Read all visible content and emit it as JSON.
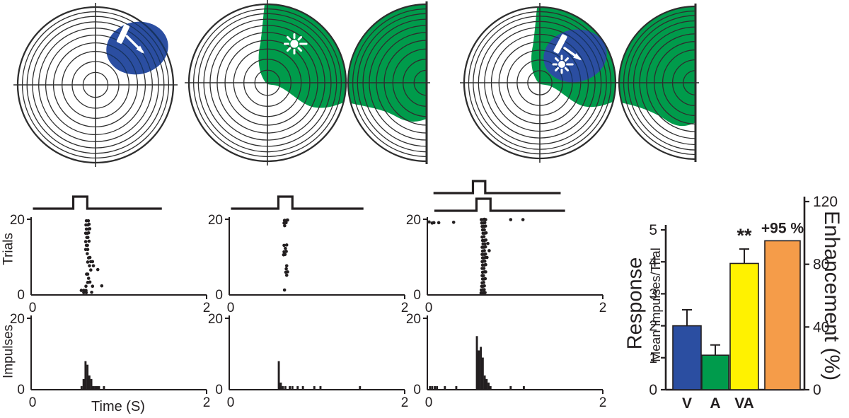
{
  "colors": {
    "rf_blue": "#2B4EA1",
    "rf_green": "#009B4B",
    "bar_v": "#2B4EA1",
    "bar_a": "#009B4C",
    "bar_va": "#FFF200",
    "bar_enhancement": "#F59C49",
    "line": "#231F20",
    "grid": "#2E2E2E",
    "grid_over_blue": "#17335F",
    "icon_white": "#FFFFFF"
  },
  "receptive_fields": {
    "panels": [
      {
        "name": "visual",
        "overlays": [
          "visual-rf-ellipse",
          "moving-bar-icon"
        ],
        "caudal_hemifield": false
      },
      {
        "name": "auditory",
        "overlays": [
          "auditory-rf-region",
          "sun-burst-icon"
        ],
        "caudal_hemifield": true
      },
      {
        "name": "visual-auditory",
        "overlays": [
          "auditory-rf-region",
          "visual-rf-ellipse",
          "moving-bar-icon",
          "sun-burst-icon"
        ],
        "caudal_hemifield": true
      }
    ]
  },
  "chart_data": [
    {
      "id": "raster-visual",
      "type": "scatter",
      "ylabel": "Trials",
      "x_range": [
        0,
        2
      ],
      "y_range": [
        0,
        20
      ],
      "x_ticks": [
        0,
        2
      ],
      "y_ticks": [
        0,
        20
      ],
      "stim_traces": [
        {
          "name": "stimulus-pulse",
          "span": [
            0.02,
            1.49
          ],
          "pulse": [
            0.48,
            0.64
          ]
        }
      ],
      "points": [
        [
          0.63,
          19.6
        ],
        [
          0.652,
          19.6
        ],
        [
          0.625,
          18.5
        ],
        [
          0.648,
          18.5
        ],
        [
          0.66,
          18.7
        ],
        [
          0.63,
          17.4
        ],
        [
          0.653,
          17.4
        ],
        [
          0.668,
          17.5
        ],
        [
          0.622,
          16.3
        ],
        [
          0.64,
          16.3
        ],
        [
          0.655,
          16.4
        ],
        [
          0.635,
          15.2
        ],
        [
          0.647,
          15.2
        ],
        [
          0.622,
          14.1
        ],
        [
          0.66,
          14.2
        ],
        [
          0.63,
          13.1
        ],
        [
          0.642,
          13.1
        ],
        [
          0.622,
          12.0
        ],
        [
          0.645,
          12.0
        ],
        [
          0.64,
          10.9
        ],
        [
          0.655,
          9.8
        ],
        [
          0.67,
          9.9
        ],
        [
          0.645,
          8.7
        ],
        [
          0.68,
          8.8
        ],
        [
          0.7,
          8.8
        ],
        [
          0.665,
          7.7
        ],
        [
          0.71,
          7.7
        ],
        [
          0.68,
          6.6
        ],
        [
          0.76,
          6.7
        ],
        [
          0.632,
          5.5
        ],
        [
          0.645,
          5.5
        ],
        [
          0.655,
          4.4
        ],
        [
          0.645,
          3.3
        ],
        [
          0.67,
          3.4
        ],
        [
          0.625,
          2.3
        ],
        [
          0.7,
          2.3
        ],
        [
          0.805,
          2.4
        ],
        [
          0.572,
          1.2
        ],
        [
          0.6,
          1.2
        ],
        [
          0.625,
          1.2
        ],
        [
          0.6,
          0.6
        ],
        [
          0.628,
          0.6
        ],
        [
          0.69,
          0.7
        ]
      ]
    },
    {
      "id": "raster-auditory",
      "type": "scatter",
      "ylabel": "Trials",
      "x_range": [
        0,
        2
      ],
      "y_range": [
        0,
        20
      ],
      "x_ticks": [
        0,
        2
      ],
      "y_ticks": [
        0,
        20
      ],
      "stim_traces": [
        {
          "name": "stimulus-pulse",
          "span": [
            0.02,
            1.53
          ],
          "pulse": [
            0.56,
            0.72
          ]
        }
      ],
      "points": [
        [
          0.63,
          19.7
        ],
        [
          0.652,
          19.7
        ],
        [
          0.665,
          19.8
        ],
        [
          0.625,
          19.0
        ],
        [
          0.648,
          19.1
        ],
        [
          0.632,
          18.3
        ],
        [
          0.625,
          13.1
        ],
        [
          0.655,
          13.2
        ],
        [
          0.64,
          12.3
        ],
        [
          0.625,
          11.4
        ],
        [
          0.65,
          11.5
        ],
        [
          0.62,
          10.6
        ],
        [
          0.636,
          10.7
        ],
        [
          0.655,
          7.7
        ],
        [
          0.65,
          6.9
        ],
        [
          0.645,
          6.0
        ],
        [
          0.665,
          6.1
        ],
        [
          0.655,
          5.2
        ],
        [
          0.63,
          1.3
        ]
      ]
    },
    {
      "id": "raster-multisensory",
      "type": "scatter",
      "ylabel": "Trials",
      "x_range": [
        0,
        2
      ],
      "y_range": [
        0,
        20
      ],
      "x_ticks": [
        0,
        2
      ],
      "y_ticks": [
        0,
        20
      ],
      "stim_traces": [
        {
          "name": "upper-stimulus-pulse",
          "span": [
            0.07,
            1.52
          ],
          "pulse": [
            0.52,
            0.66
          ]
        },
        {
          "name": "lower-stimulus-pulse",
          "span": [
            0.08,
            1.57
          ],
          "pulse": [
            0.56,
            0.72
          ]
        }
      ],
      "points": [
        [
          0.615,
          19.9
        ],
        [
          0.635,
          19.9
        ],
        [
          0.65,
          20.0
        ],
        [
          0.665,
          19.9
        ],
        [
          0.95,
          19.9
        ],
        [
          1.09,
          19.9
        ],
        [
          0.02,
          19.3
        ],
        [
          0.055,
          19.0
        ],
        [
          0.075,
          19.1
        ],
        [
          0.13,
          19.1
        ],
        [
          0.3,
          19.2
        ],
        [
          0.62,
          19.0
        ],
        [
          0.64,
          19.0
        ],
        [
          0.655,
          19.1
        ],
        [
          0.625,
          18.1
        ],
        [
          0.645,
          18.1
        ],
        [
          0.663,
          18.2
        ],
        [
          0.63,
          17.2
        ],
        [
          0.65,
          17.2
        ],
        [
          0.635,
          16.3
        ],
        [
          0.655,
          16.3
        ],
        [
          0.67,
          16.4
        ],
        [
          0.625,
          15.3
        ],
        [
          0.645,
          15.4
        ],
        [
          0.63,
          14.4
        ],
        [
          0.65,
          14.4
        ],
        [
          0.668,
          14.5
        ],
        [
          0.635,
          13.5
        ],
        [
          0.655,
          13.5
        ],
        [
          0.69,
          13.6
        ],
        [
          0.625,
          12.6
        ],
        [
          0.645,
          12.6
        ],
        [
          0.663,
          12.7
        ],
        [
          0.63,
          11.6
        ],
        [
          0.65,
          11.7
        ],
        [
          0.705,
          11.7
        ],
        [
          0.625,
          10.7
        ],
        [
          0.648,
          10.7
        ],
        [
          0.663,
          10.8
        ],
        [
          0.63,
          9.8
        ],
        [
          0.645,
          9.8
        ],
        [
          0.663,
          9.9
        ],
        [
          0.68,
          9.9
        ],
        [
          0.625,
          8.8
        ],
        [
          0.64,
          8.9
        ],
        [
          0.655,
          8.9
        ],
        [
          0.63,
          7.9
        ],
        [
          0.65,
          7.9
        ],
        [
          0.665,
          8.0
        ],
        [
          0.625,
          7.0
        ],
        [
          0.645,
          7.0
        ],
        [
          0.63,
          6.0
        ],
        [
          0.65,
          6.1
        ],
        [
          0.665,
          6.1
        ],
        [
          0.625,
          5.1
        ],
        [
          0.64,
          5.1
        ],
        [
          0.63,
          4.2
        ],
        [
          0.645,
          4.2
        ],
        [
          0.66,
          4.3
        ],
        [
          0.625,
          3.2
        ],
        [
          0.642,
          3.3
        ],
        [
          0.62,
          2.3
        ],
        [
          0.635,
          2.3
        ],
        [
          0.65,
          2.4
        ],
        [
          0.615,
          1.3
        ],
        [
          0.632,
          1.4
        ],
        [
          0.648,
          1.4
        ],
        [
          0.612,
          0.5
        ],
        [
          0.628,
          0.5
        ],
        [
          0.644,
          0.6
        ],
        [
          0.658,
          0.6
        ]
      ]
    },
    {
      "id": "psth-visual",
      "type": "bar",
      "ylabel": "Impulses",
      "xlabel": "Time (S)",
      "x_range": [
        0,
        2
      ],
      "y_range": [
        0,
        20
      ],
      "x_ticks": [
        0,
        2
      ],
      "y_ticks": [
        0,
        20
      ],
      "bin_width": 0.022,
      "bins": [
        [
          0.575,
          1
        ],
        [
          0.598,
          3
        ],
        [
          0.62,
          8
        ],
        [
          0.642,
          7
        ],
        [
          0.664,
          4
        ],
        [
          0.686,
          3
        ],
        [
          0.708,
          1
        ],
        [
          0.73,
          1
        ],
        [
          0.752,
          1
        ],
        [
          0.774,
          1
        ],
        [
          0.83,
          1
        ]
      ]
    },
    {
      "id": "psth-auditory",
      "type": "bar",
      "ylabel": "Impulses",
      "xlabel": "",
      "x_range": [
        0,
        2
      ],
      "y_range": [
        0,
        20
      ],
      "x_ticks": [
        0,
        2
      ],
      "y_ticks": [
        0,
        20
      ],
      "bin_width": 0.022,
      "bins": [
        [
          0.565,
          8
        ],
        [
          0.588,
          2
        ],
        [
          0.61,
          1
        ],
        [
          0.64,
          1
        ],
        [
          0.69,
          1
        ],
        [
          0.72,
          1
        ],
        [
          0.78,
          1
        ],
        [
          0.84,
          1
        ],
        [
          0.97,
          1
        ],
        [
          1.04,
          1
        ],
        [
          1.49,
          1
        ]
      ]
    },
    {
      "id": "psth-multisensory",
      "type": "bar",
      "ylabel": "Impulses",
      "xlabel": "",
      "x_range": [
        0,
        2
      ],
      "y_range": [
        0,
        20
      ],
      "x_ticks": [
        0,
        2
      ],
      "y_ticks": [
        0,
        20
      ],
      "bin_width": 0.022,
      "bins": [
        [
          0.03,
          1
        ],
        [
          0.055,
          1
        ],
        [
          0.085,
          1
        ],
        [
          0.11,
          1
        ],
        [
          0.2,
          1
        ],
        [
          0.33,
          1
        ],
        [
          0.565,
          15
        ],
        [
          0.588,
          11
        ],
        [
          0.61,
          12
        ],
        [
          0.632,
          9
        ],
        [
          0.654,
          4
        ],
        [
          0.676,
          3
        ],
        [
          0.698,
          2
        ],
        [
          0.72,
          1
        ],
        [
          0.95,
          1
        ],
        [
          1.1,
          1
        ]
      ]
    },
    {
      "id": "response-bar-chart",
      "type": "bar",
      "categories": [
        "V",
        "A",
        "VA"
      ],
      "values": [
        2.0,
        1.08,
        3.95
      ],
      "error_up": [
        0.5,
        0.32,
        0.45
      ],
      "significance": {
        "category": "VA",
        "label": "**"
      },
      "enhancement_bar": {
        "value": 95,
        "label": "+95 %",
        "axis": "right"
      },
      "left_axis": {
        "label_main": "Response",
        "label_sub": "Mean Impulses/Trial",
        "range": [
          0,
          5
        ],
        "ticks": [
          0,
          1,
          2,
          3,
          4,
          5
        ]
      },
      "right_axis": {
        "label": "Enhancement (%)",
        "range": [
          0,
          120
        ],
        "ticks": [
          0,
          40,
          80,
          120
        ]
      }
    }
  ]
}
